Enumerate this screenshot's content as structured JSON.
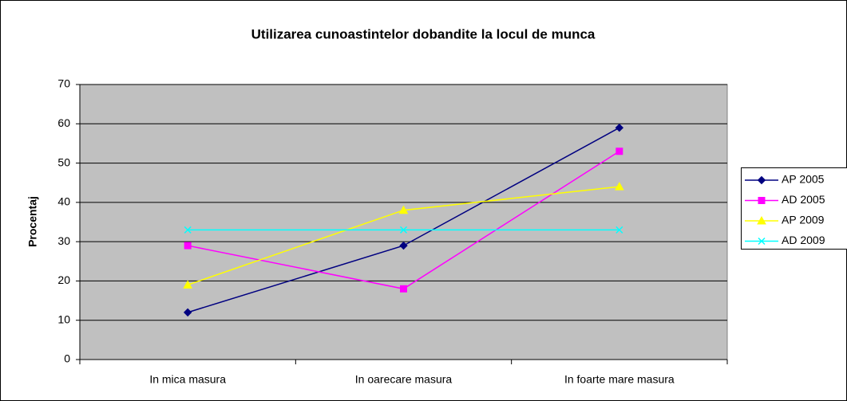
{
  "chart_data": {
    "type": "line",
    "title": "Utilizarea cunoastintelor dobandite la locul de munca",
    "y_label": "Procentaj",
    "categories": [
      "In mica masura",
      "In oarecare masura",
      "In foarte mare masura"
    ],
    "series": [
      {
        "name": "AP 2005",
        "color": "#000080",
        "marker": "diamond",
        "values": [
          12,
          29,
          59
        ]
      },
      {
        "name": "AD 2005",
        "color": "#ff00ff",
        "marker": "square",
        "values": [
          29,
          18,
          53
        ]
      },
      {
        "name": "AP 2009",
        "color": "#ffff00",
        "marker": "triangle",
        "values": [
          19,
          38,
          44
        ]
      },
      {
        "name": "AD 2009",
        "color": "#00ffff",
        "marker": "x",
        "values": [
          33,
          33,
          33
        ]
      }
    ],
    "ylim": [
      0,
      70
    ],
    "yticks": [
      0,
      10,
      20,
      30,
      40,
      50,
      60,
      70
    ],
    "grid": true,
    "legend": "right"
  }
}
